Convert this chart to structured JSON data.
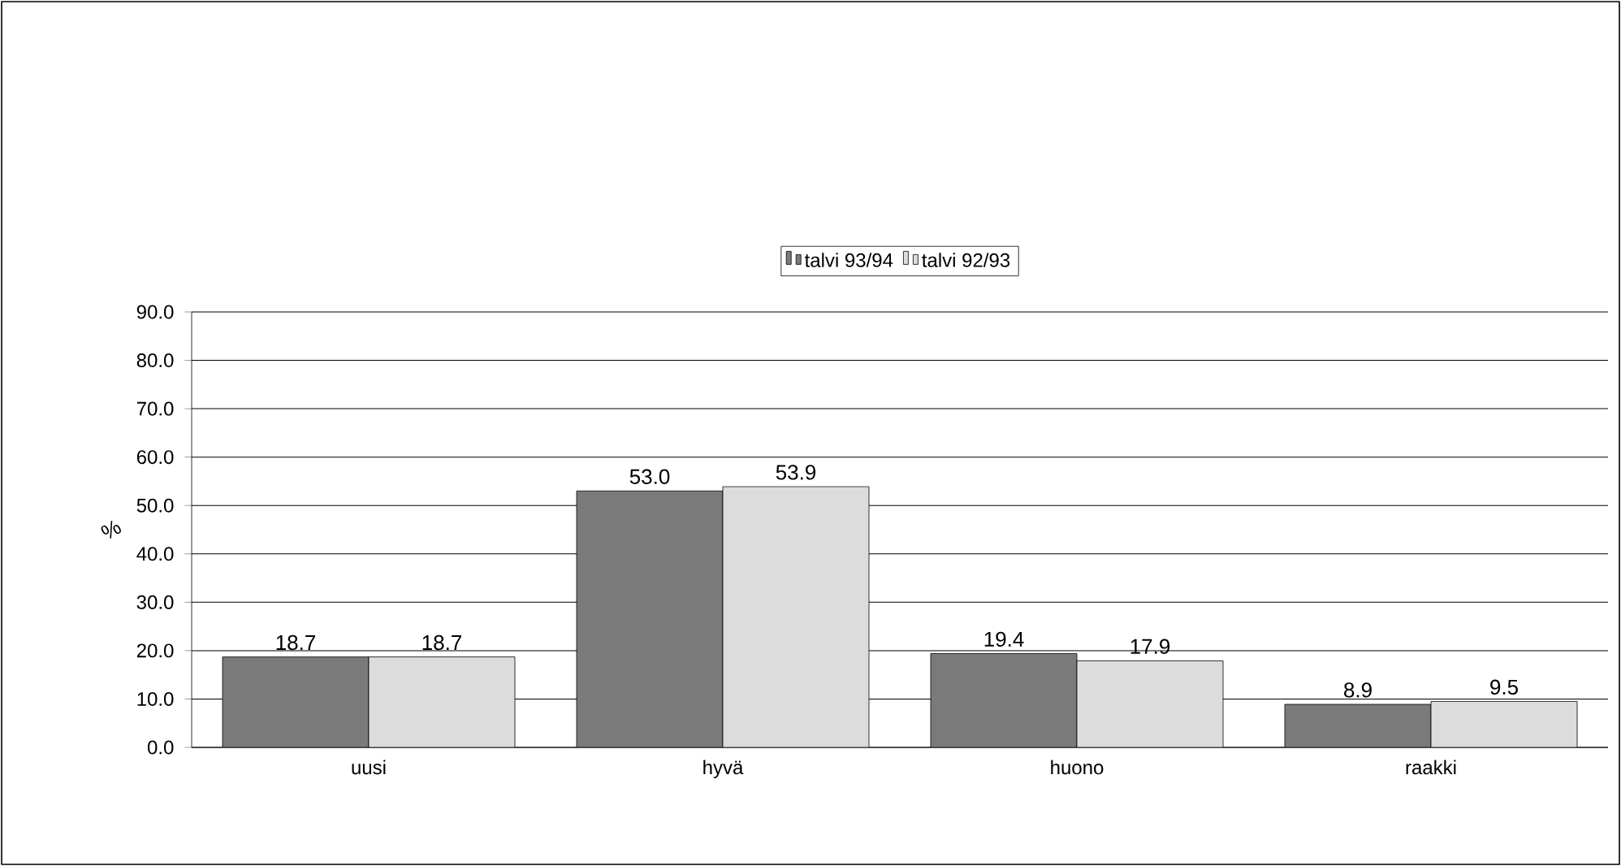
{
  "chart_data": {
    "type": "bar",
    "ylabel": "%",
    "categories": [
      "uusi",
      "hyvä",
      "huono",
      "raakki"
    ],
    "series": [
      {
        "name": "talvi 93/94",
        "color": "#7a7a7a",
        "values": [
          18.7,
          53.0,
          19.4,
          8.9
        ],
        "value_labels": [
          "18.7",
          "53.0",
          "19.4",
          "8.9"
        ]
      },
      {
        "name": "talvi 92/93",
        "color": "#dcdcdc",
        "values": [
          18.7,
          53.9,
          17.9,
          9.5
        ],
        "value_labels": [
          "18.7",
          "53.9",
          "17.9",
          "9.5"
        ]
      }
    ],
    "ylim": [
      0,
      90
    ],
    "yticks": [
      {
        "value": 0,
        "label": "0.0"
      },
      {
        "value": 10,
        "label": "10.0"
      },
      {
        "value": 20,
        "label": "20.0"
      },
      {
        "value": 30,
        "label": "30.0"
      },
      {
        "value": 40,
        "label": "40.0"
      },
      {
        "value": 50,
        "label": "50.0"
      },
      {
        "value": 60,
        "label": "60.0"
      },
      {
        "value": 70,
        "label": "70.0"
      },
      {
        "value": 80,
        "label": "80.0"
      },
      {
        "value": 90,
        "label": "90.0"
      }
    ],
    "grid": "y",
    "legend": "top"
  }
}
